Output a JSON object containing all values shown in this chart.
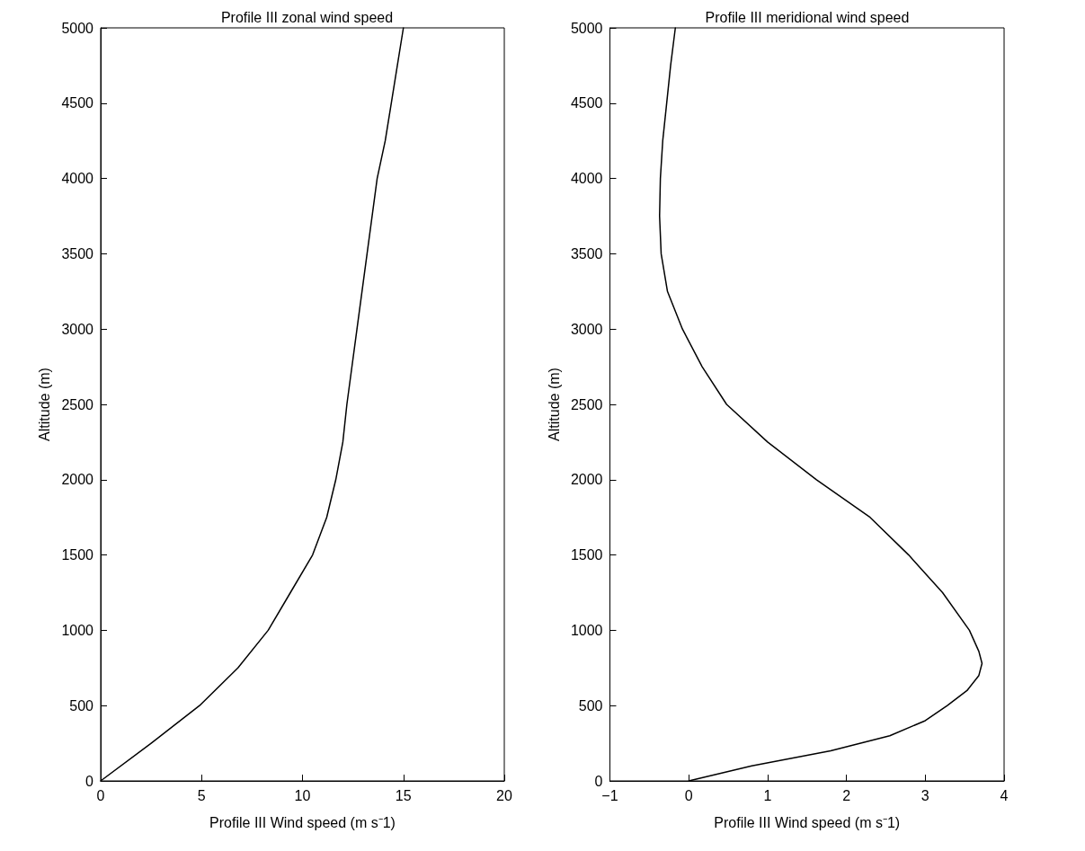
{
  "chart_data": [
    {
      "type": "line",
      "title": "Profile III zonal wind speed",
      "xlabel": "Profile III Wind speed (m s⁻1)",
      "ylabel": "Altitude (m)",
      "xlim": [
        0,
        20
      ],
      "xticks": [
        0,
        5,
        10,
        15,
        20
      ],
      "ylim": [
        0,
        5000
      ],
      "yticks": [
        0,
        500,
        1000,
        1500,
        2000,
        2500,
        3000,
        3500,
        4000,
        4500,
        5000
      ],
      "marker": "none",
      "line_style": "solid",
      "series": [
        {
          "color": "#000000",
          "x": [
            0,
            2.5,
            4.9,
            6.8,
            8.3,
            9.4,
            10.5,
            11.2,
            11.65,
            12.0,
            12.2,
            12.7,
            13.2,
            13.7,
            14.1,
            14.4,
            14.7,
            15.0
          ],
          "values": [
            0,
            250,
            500,
            750,
            1000,
            1250,
            1500,
            1750,
            2000,
            2250,
            2500,
            3000,
            3500,
            4000,
            4250,
            4500,
            4750,
            5000
          ]
        }
      ]
    },
    {
      "type": "line",
      "title": "Profile III meridional wind speed",
      "xlabel": "Profile III Wind speed (m s⁻1)",
      "ylabel": "Altitude (m)",
      "xlim": [
        -1,
        4
      ],
      "xticks": [
        {
          "value": -1,
          "label": "−1"
        },
        0,
        1,
        2,
        3,
        4
      ],
      "ylim": [
        0,
        5000
      ],
      "yticks": [
        0,
        500,
        1000,
        1500,
        2000,
        2500,
        3000,
        3500,
        4000,
        4500,
        5000
      ],
      "marker": "none",
      "line_style": "solid",
      "series": [
        {
          "color": "#000000",
          "x": [
            0,
            0.8,
            1.8,
            2.55,
            3.0,
            3.28,
            3.53,
            3.68,
            3.72,
            3.68,
            3.56,
            3.22,
            2.79,
            2.3,
            1.62,
            1.0,
            0.48,
            0.17,
            -0.08,
            -0.27,
            -0.35,
            -0.37,
            -0.36,
            -0.33,
            -0.28,
            -0.23,
            -0.17
          ],
          "values": [
            0,
            100,
            200,
            300,
            400,
            500,
            600,
            700,
            780,
            860,
            1000,
            1250,
            1500,
            1750,
            2000,
            2250,
            2500,
            2750,
            3000,
            3250,
            3500,
            3750,
            4000,
            4250,
            4500,
            4750,
            5000
          ]
        }
      ]
    }
  ]
}
